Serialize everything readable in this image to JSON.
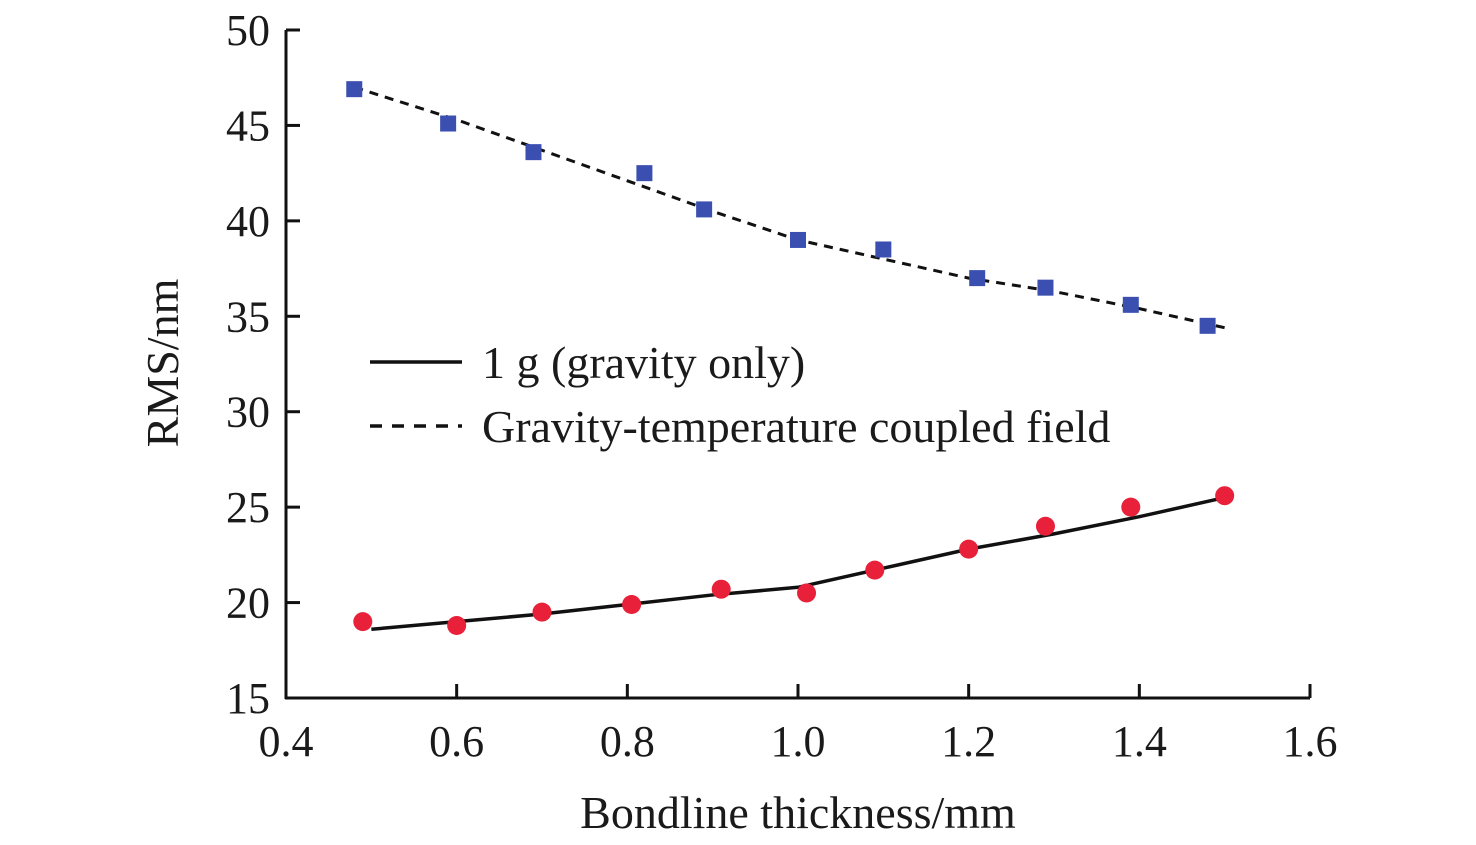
{
  "chart_data": {
    "type": "line",
    "xlabel": "Bondline thickness/mm",
    "ylabel": "RMS/nm",
    "xlim": [
      0.4,
      1.6
    ],
    "ylim": [
      15,
      50
    ],
    "x_ticks": [
      "0.4",
      "0.6",
      "0.8",
      "1.0",
      "1.2",
      "1.4",
      "1.6"
    ],
    "y_ticks": [
      "15",
      "20",
      "25",
      "30",
      "35",
      "40",
      "45",
      "50"
    ],
    "grid": false,
    "legend_position": "center-left",
    "series": [
      {
        "name": "1 g (gravity only)",
        "line_style": "solid",
        "line_color": "#111111",
        "marker": "circle",
        "marker_color": "#e8203a",
        "line": {
          "x": [
            0.5,
            0.6,
            0.7,
            0.8,
            0.9,
            1.0,
            1.1,
            1.2,
            1.3,
            1.4,
            1.5
          ],
          "y": [
            18.6,
            19.0,
            19.4,
            19.9,
            20.4,
            20.8,
            21.8,
            22.8,
            23.6,
            24.5,
            25.5
          ]
        },
        "points": {
          "x": [
            0.49,
            0.6,
            0.7,
            0.805,
            0.91,
            1.01,
            1.09,
            1.2,
            1.29,
            1.39,
            1.5
          ],
          "y": [
            19.0,
            18.8,
            19.5,
            19.9,
            20.7,
            20.5,
            21.7,
            22.8,
            24.0,
            25.0,
            25.6
          ]
        }
      },
      {
        "name": "Gravity-temperature coupled field",
        "line_style": "dashed",
        "line_color": "#111111",
        "marker": "square",
        "marker_color": "#3a4fb0",
        "line": {
          "x": [
            0.48,
            0.6,
            0.7,
            0.8,
            0.9,
            1.0,
            1.1,
            1.2,
            1.3,
            1.4,
            1.5
          ],
          "y": [
            47.0,
            45.3,
            43.7,
            42.1,
            40.5,
            39.0,
            38.0,
            37.0,
            36.3,
            35.4,
            34.4
          ]
        },
        "points": {
          "x": [
            0.48,
            0.59,
            0.69,
            0.82,
            0.89,
            1.0,
            1.1,
            1.21,
            1.29,
            1.39,
            1.48
          ],
          "y": [
            46.9,
            45.1,
            43.6,
            42.5,
            40.6,
            39.0,
            38.5,
            37.0,
            36.5,
            35.6,
            34.5
          ]
        }
      }
    ]
  }
}
